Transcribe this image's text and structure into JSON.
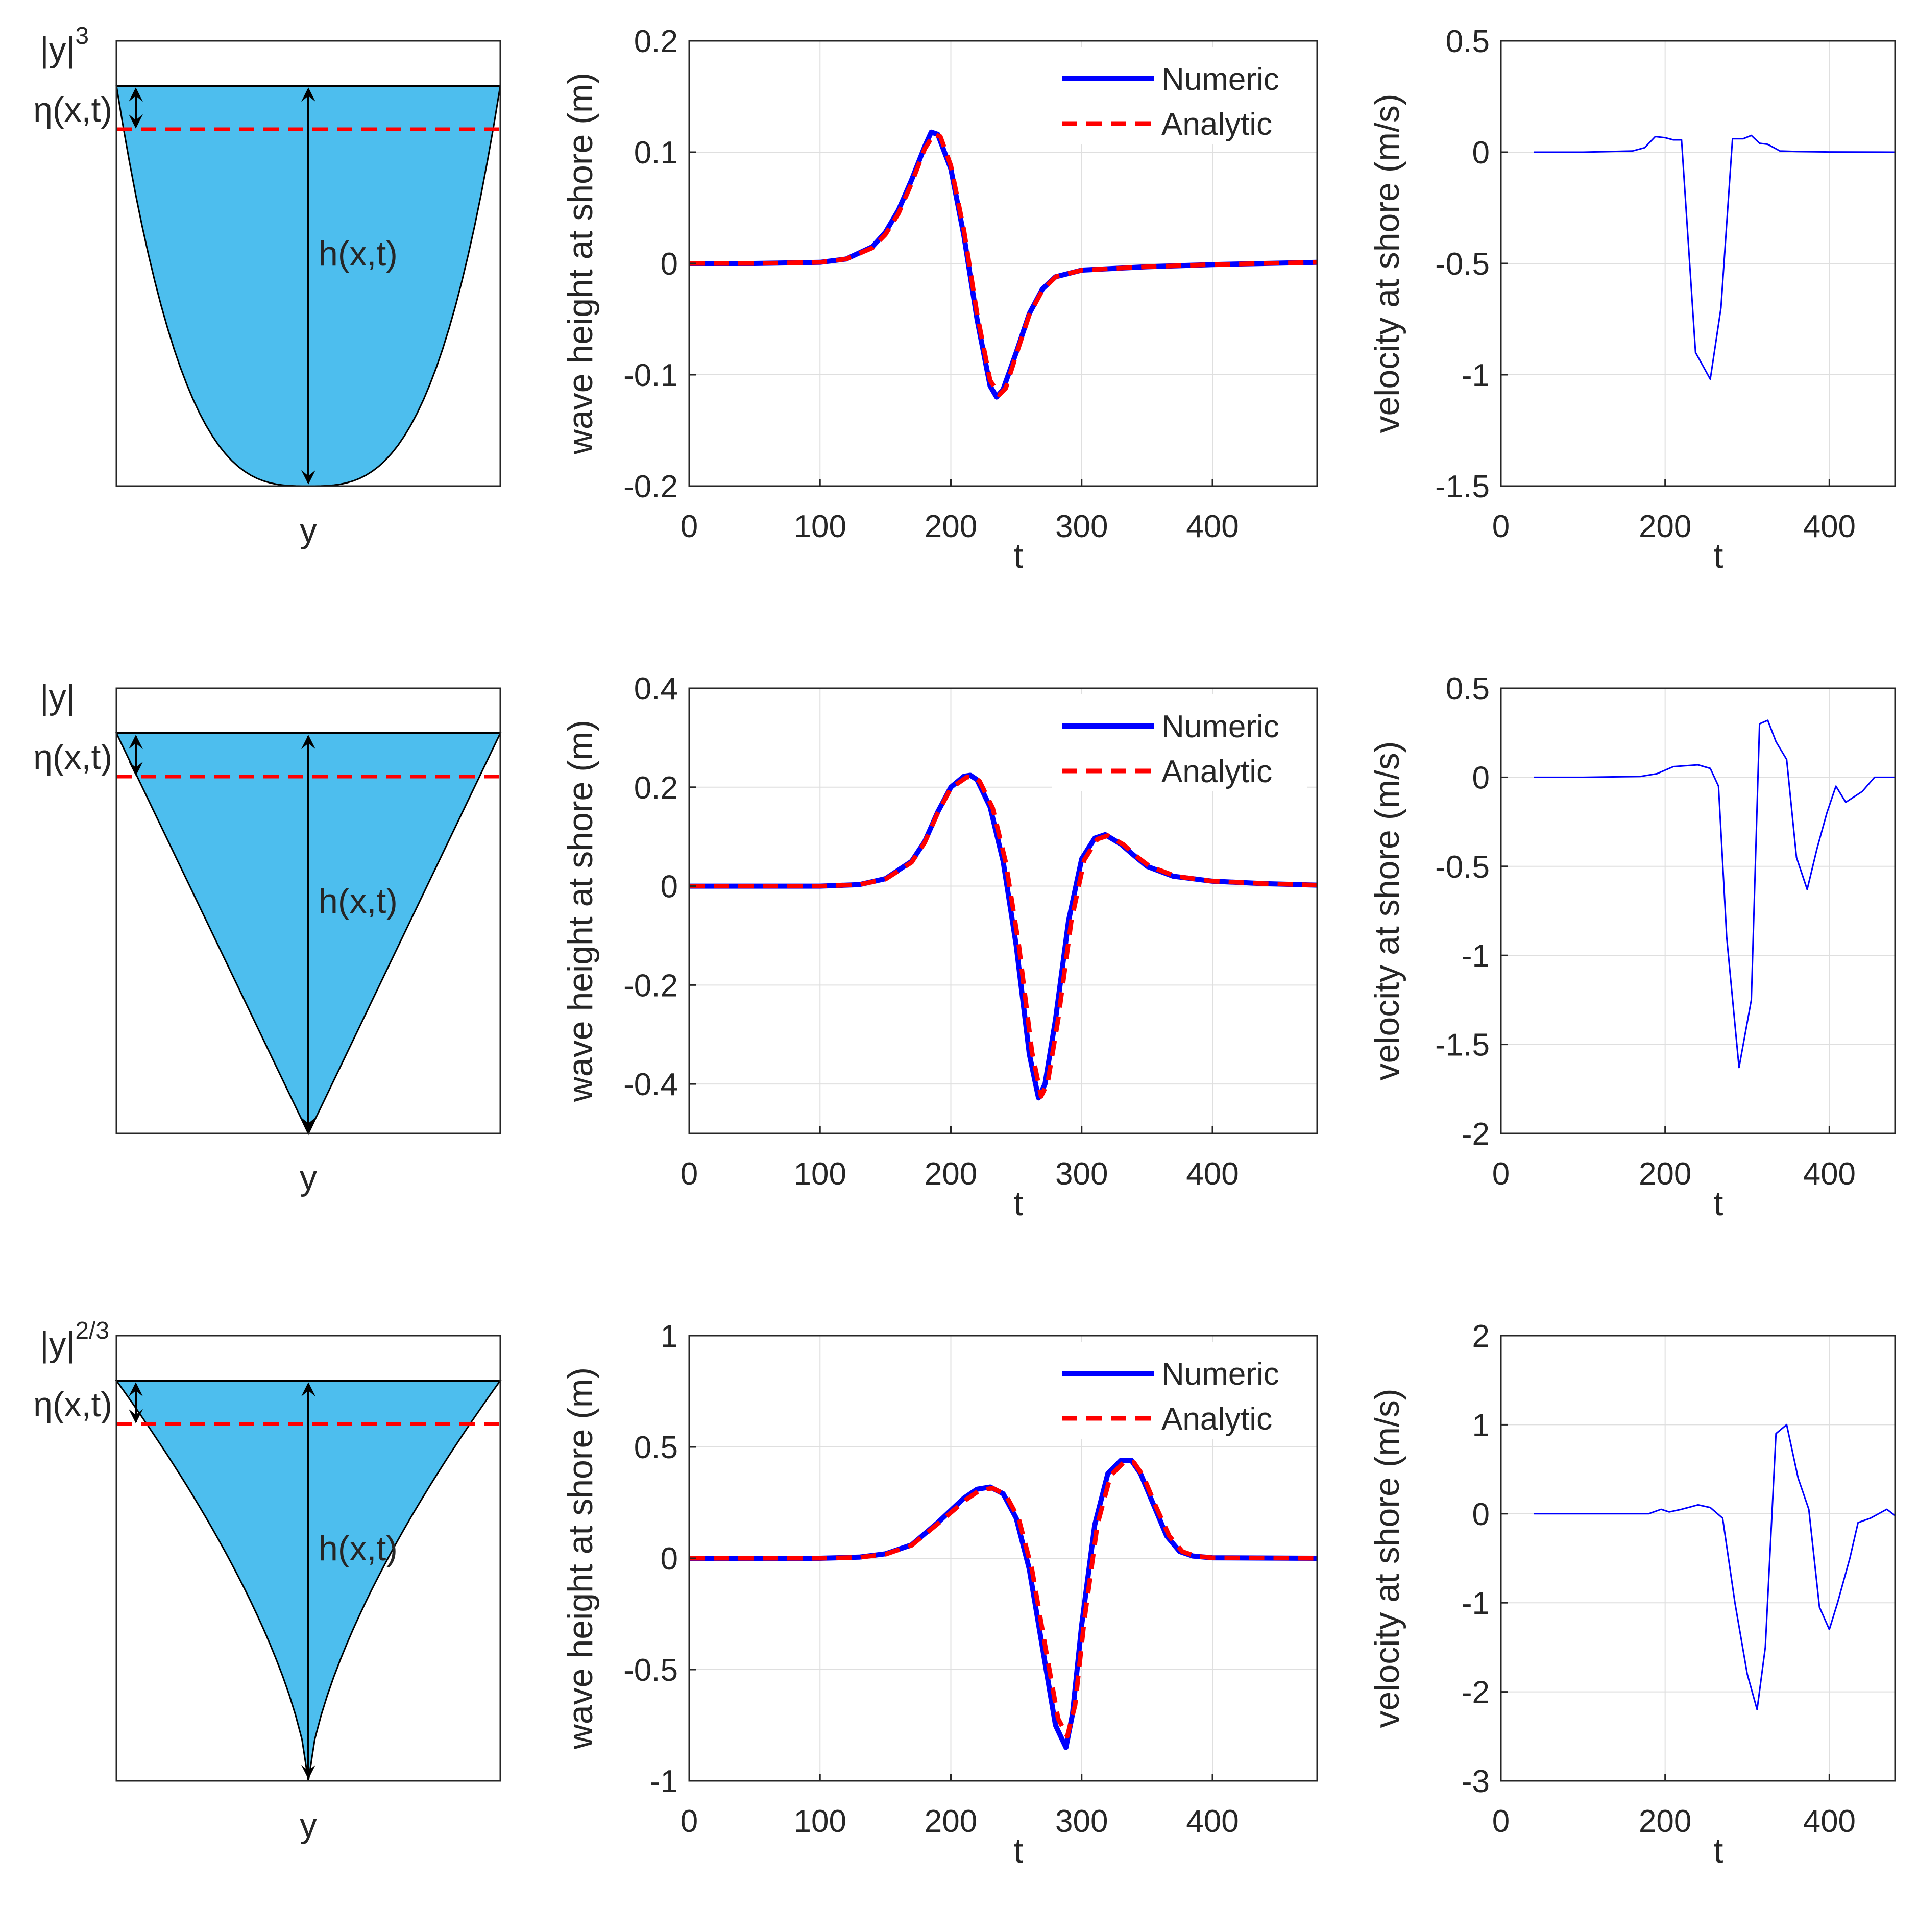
{
  "colors": {
    "water": "#4DBEEE",
    "numeric": "#0000FF",
    "analytic": "#FF0000",
    "grid": "#DFDFDF",
    "axis": "#262626"
  },
  "rows": [
    {
      "cross_section": {
        "profile_label": "|y|",
        "profile_exponent": "3",
        "shape": "cubic",
        "eta_label": "η(x,t)",
        "h_label": "h(x,t)",
        "y_label": "y"
      },
      "wave": {
        "ylabel": "wave height at shore (m)",
        "xlabel": "t",
        "xlim": [
          0,
          480
        ],
        "ylim": [
          -0.2,
          0.2
        ],
        "xticks": [
          0,
          100,
          200,
          300,
          400
        ],
        "yticks": [
          -0.2,
          -0.1,
          0,
          0.1,
          0.2
        ],
        "ytick_labels": [
          "-0.2",
          "-0.1",
          "0",
          "0.1",
          "0.2"
        ],
        "legend": [
          "Numeric",
          "Analytic"
        ]
      },
      "velocity": {
        "ylabel": "velocity at shore (m/s)",
        "xlabel": "t",
        "xlim": [
          0,
          480
        ],
        "ylim": [
          -1.5,
          0.5
        ],
        "xticks": [
          0,
          200,
          400
        ],
        "yticks": [
          -1.5,
          -1,
          -0.5,
          0,
          0.5
        ],
        "ytick_labels": [
          "-1.5",
          "-1",
          "-0.5",
          "0",
          "0.5"
        ]
      }
    },
    {
      "cross_section": {
        "profile_label": "|y|",
        "profile_exponent": "",
        "shape": "linear",
        "eta_label": "η(x,t)",
        "h_label": "h(x,t)",
        "y_label": "y"
      },
      "wave": {
        "ylabel": "wave height at shore (m)",
        "xlabel": "t",
        "xlim": [
          0,
          480
        ],
        "ylim": [
          -0.5,
          0.4
        ],
        "xticks": [
          0,
          100,
          200,
          300,
          400
        ],
        "yticks": [
          -0.4,
          -0.2,
          0,
          0.2,
          0.4
        ],
        "ytick_labels": [
          "-0.4",
          "-0.2",
          "0",
          "0.2",
          "0.4"
        ],
        "legend": [
          "Numeric",
          "Analytic"
        ]
      },
      "velocity": {
        "ylabel": "velocity at shore (m/s)",
        "xlabel": "t",
        "xlim": [
          0,
          480
        ],
        "ylim": [
          -2,
          0.5
        ],
        "xticks": [
          0,
          200,
          400
        ],
        "yticks": [
          -2,
          -1.5,
          -1,
          -0.5,
          0,
          0.5
        ],
        "ytick_labels": [
          "-2",
          "-1.5",
          "-1",
          "-0.5",
          "0",
          "0.5"
        ]
      }
    },
    {
      "cross_section": {
        "profile_label": "|y|",
        "profile_exponent": "2/3",
        "shape": "power23",
        "eta_label": "η(x,t)",
        "h_label": "h(x,t)",
        "y_label": "y"
      },
      "wave": {
        "ylabel": "wave height at shore (m)",
        "xlabel": "t",
        "xlim": [
          0,
          480
        ],
        "ylim": [
          -1,
          1
        ],
        "xticks": [
          0,
          100,
          200,
          300,
          400
        ],
        "yticks": [
          -1,
          -0.5,
          0,
          0.5,
          1
        ],
        "ytick_labels": [
          "-1",
          "-0.5",
          "0",
          "0.5",
          "1"
        ],
        "legend": [
          "Numeric",
          "Analytic"
        ]
      },
      "velocity": {
        "ylabel": "velocity at shore (m/s)",
        "xlabel": "t",
        "xlim": [
          0,
          480
        ],
        "ylim": [
          -3,
          2
        ],
        "xticks": [
          0,
          200,
          400
        ],
        "yticks": [
          -3,
          -2,
          -1,
          0,
          1,
          2
        ],
        "ytick_labels": [
          "-3",
          "-2",
          "-1",
          "0",
          "1",
          "2"
        ]
      }
    }
  ],
  "chart_data": [
    {
      "type": "line",
      "panel": "row1-wave",
      "xlabel": "t",
      "ylabel": "wave height at shore (m)",
      "xlim": [
        0,
        480
      ],
      "ylim": [
        -0.2,
        0.2
      ],
      "grid": true,
      "legend_position": "top-right",
      "series": [
        {
          "name": "Numeric",
          "x": [
            0,
            50,
            100,
            120,
            140,
            150,
            160,
            170,
            180,
            185,
            190,
            200,
            210,
            220,
            230,
            235,
            240,
            250,
            260,
            270,
            280,
            300,
            350,
            400,
            480
          ],
          "y": [
            0,
            0,
            0.001,
            0.004,
            0.015,
            0.028,
            0.048,
            0.075,
            0.105,
            0.118,
            0.116,
            0.085,
            0.025,
            -0.05,
            -0.11,
            -0.12,
            -0.113,
            -0.08,
            -0.045,
            -0.023,
            -0.012,
            -0.006,
            -0.003,
            -0.001,
            0.001
          ]
        },
        {
          "name": "Analytic",
          "x": [
            0,
            50,
            100,
            120,
            140,
            150,
            160,
            170,
            180,
            187,
            192,
            200,
            210,
            220,
            230,
            237,
            242,
            250,
            260,
            270,
            280,
            300,
            350,
            400,
            480
          ],
          "y": [
            0,
            0,
            0.001,
            0.004,
            0.014,
            0.026,
            0.045,
            0.072,
            0.103,
            0.116,
            0.114,
            0.088,
            0.03,
            -0.045,
            -0.105,
            -0.118,
            -0.112,
            -0.082,
            -0.046,
            -0.024,
            -0.012,
            -0.006,
            -0.003,
            -0.001,
            0.001
          ]
        }
      ]
    },
    {
      "type": "line",
      "panel": "row1-velocity",
      "xlabel": "t",
      "ylabel": "velocity at shore (m/s)",
      "xlim": [
        0,
        480
      ],
      "ylim": [
        -1.5,
        0.5
      ],
      "grid": true,
      "series": [
        {
          "x": [
            40,
            100,
            160,
            175,
            188,
            200,
            210,
            220,
            237,
            255,
            268,
            282,
            295,
            305,
            315,
            325,
            340,
            360,
            400,
            480
          ],
          "y": [
            0,
            0,
            0.005,
            0.02,
            0.07,
            0.065,
            0.055,
            0.055,
            -0.9,
            -1.02,
            -0.7,
            0.06,
            0.06,
            0.075,
            0.04,
            0.035,
            0.005,
            0.003,
            0.001,
            0
          ]
        }
      ]
    },
    {
      "type": "line",
      "panel": "row2-wave",
      "xlabel": "t",
      "ylabel": "wave height at shore (m)",
      "xlim": [
        0,
        480
      ],
      "ylim": [
        -0.5,
        0.4
      ],
      "grid": true,
      "legend_position": "top-right",
      "series": [
        {
          "name": "Numeric",
          "x": [
            0,
            100,
            130,
            150,
            170,
            180,
            190,
            200,
            210,
            215,
            220,
            230,
            240,
            250,
            260,
            267,
            272,
            280,
            290,
            300,
            310,
            318,
            330,
            340,
            350,
            370,
            400,
            440,
            480
          ],
          "y": [
            0,
            0,
            0.003,
            0.015,
            0.05,
            0.09,
            0.15,
            0.2,
            0.222,
            0.224,
            0.215,
            0.16,
            0.05,
            -0.12,
            -0.34,
            -0.428,
            -0.4,
            -0.27,
            -0.07,
            0.055,
            0.097,
            0.104,
            0.085,
            0.062,
            0.04,
            0.02,
            0.01,
            0.005,
            0.002
          ]
        },
        {
          "name": "Analytic",
          "x": [
            0,
            100,
            130,
            150,
            170,
            180,
            190,
            200,
            212,
            217,
            222,
            232,
            242,
            252,
            262,
            269,
            274,
            282,
            292,
            302,
            312,
            320,
            332,
            342,
            352,
            372,
            400,
            440,
            480
          ],
          "y": [
            0,
            0,
            0.003,
            0.014,
            0.048,
            0.088,
            0.148,
            0.198,
            0.22,
            0.222,
            0.212,
            0.158,
            0.048,
            -0.12,
            -0.335,
            -0.425,
            -0.398,
            -0.27,
            -0.072,
            0.053,
            0.095,
            0.102,
            0.084,
            0.06,
            0.04,
            0.02,
            0.01,
            0.005,
            0.002
          ]
        }
      ]
    },
    {
      "type": "line",
      "panel": "row2-velocity",
      "xlabel": "t",
      "ylabel": "velocity at shore (m/s)",
      "xlim": [
        0,
        480
      ],
      "ylim": [
        -2,
        0.5
      ],
      "grid": true,
      "series": [
        {
          "x": [
            40,
            100,
            170,
            190,
            210,
            240,
            255,
            265,
            275,
            290,
            305,
            315,
            325,
            335,
            348,
            360,
            373,
            385,
            397,
            408,
            420,
            440,
            455,
            480
          ],
          "y": [
            0,
            0,
            0.005,
            0.02,
            0.06,
            0.07,
            0.05,
            -0.05,
            -0.9,
            -1.63,
            -1.25,
            0.3,
            0.32,
            0.2,
            0.1,
            -0.45,
            -0.63,
            -0.4,
            -0.2,
            -0.05,
            -0.14,
            -0.08,
            0,
            0
          ]
        }
      ]
    },
    {
      "type": "line",
      "panel": "row3-wave",
      "xlabel": "t",
      "ylabel": "wave height at shore (m)",
      "xlim": [
        0,
        480
      ],
      "ylim": [
        -1,
        1
      ],
      "grid": true,
      "legend_position": "top-right",
      "series": [
        {
          "name": "Numeric",
          "x": [
            0,
            100,
            130,
            150,
            170,
            190,
            210,
            220,
            230,
            240,
            250,
            260,
            270,
            280,
            288,
            293,
            300,
            310,
            320,
            330,
            338,
            345,
            355,
            365,
            375,
            385,
            400,
            480
          ],
          "y": [
            0,
            0,
            0.005,
            0.02,
            0.06,
            0.16,
            0.27,
            0.31,
            0.32,
            0.29,
            0.18,
            -0.05,
            -0.4,
            -0.75,
            -0.85,
            -0.7,
            -0.3,
            0.15,
            0.38,
            0.44,
            0.44,
            0.38,
            0.24,
            0.1,
            0.03,
            0.01,
            0.002,
            0
          ]
        },
        {
          "name": "Analytic",
          "x": [
            0,
            100,
            130,
            150,
            170,
            190,
            212,
            222,
            232,
            242,
            252,
            262,
            272,
            282,
            289,
            295,
            302,
            312,
            322,
            332,
            340,
            347,
            357,
            367,
            377,
            387,
            400,
            480
          ],
          "y": [
            0,
            0,
            0.004,
            0.018,
            0.058,
            0.155,
            0.265,
            0.305,
            0.315,
            0.285,
            0.175,
            -0.05,
            -0.39,
            -0.72,
            -0.8,
            -0.66,
            -0.28,
            0.15,
            0.37,
            0.43,
            0.43,
            0.37,
            0.23,
            0.1,
            0.03,
            0.01,
            0.002,
            0
          ]
        }
      ]
    },
    {
      "type": "line",
      "panel": "row3-velocity",
      "xlabel": "t",
      "ylabel": "velocity at shore (m/s)",
      "xlim": [
        0,
        480
      ],
      "ylim": [
        -3,
        2
      ],
      "grid": true,
      "series": [
        {
          "x": [
            40,
            100,
            180,
            195,
            205,
            220,
            240,
            255,
            270,
            285,
            300,
            312,
            322,
            335,
            348,
            362,
            375,
            388,
            400,
            410,
            425,
            435,
            450,
            470,
            480
          ],
          "y": [
            0,
            0,
            0,
            0.05,
            0.02,
            0.05,
            0.1,
            0.07,
            -0.05,
            -1,
            -1.8,
            -2.2,
            -1.5,
            0.9,
            1,
            0.4,
            0.05,
            -1.05,
            -1.3,
            -1,
            -0.5,
            -0.1,
            -0.05,
            0.05,
            -0.02
          ]
        }
      ]
    }
  ]
}
